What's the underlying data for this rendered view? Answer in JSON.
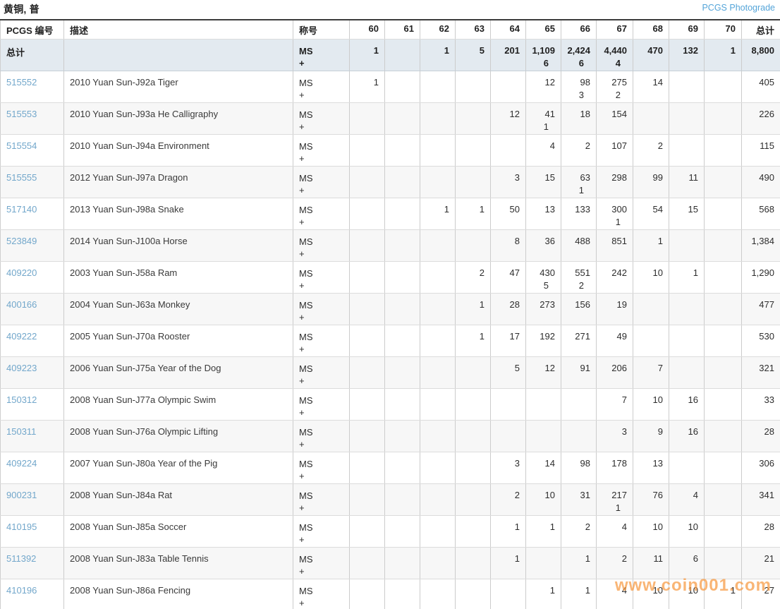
{
  "page": {
    "title": "黄铜, 普",
    "photograde_link": "PCGS Photograde"
  },
  "watermark": "www.coin001.com",
  "colors": {
    "link_blue": "#72a7cb",
    "photograde_blue": "#55a5d9",
    "totals_row_bg": "#e3eaf0",
    "watermark_orange": "#f79940"
  },
  "table": {
    "columns": [
      "PCGS 编号",
      "描述",
      "称号",
      "60",
      "61",
      "62",
      "63",
      "64",
      "65",
      "66",
      "67",
      "68",
      "69",
      "70",
      "总计"
    ],
    "grade_labels": [
      "60",
      "61",
      "62",
      "63",
      "64",
      "65",
      "66",
      "67",
      "68",
      "69",
      "70"
    ],
    "totals": {
      "label": "总计",
      "description": "",
      "designation": "MS +",
      "grades": [
        "1",
        "",
        "1",
        "5",
        "201",
        "1,109",
        "2,424",
        "4,440",
        "470",
        "132",
        "1"
      ],
      "plus": [
        "",
        "",
        "",
        "",
        "",
        "6",
        "6",
        "4",
        "",
        "",
        ""
      ],
      "total": "8,800"
    },
    "rows": [
      {
        "pcgs_no": "515552",
        "description": "2010 Yuan Sun-J92a Tiger",
        "designation": "MS +",
        "grades": [
          "1",
          "",
          "",
          "",
          "",
          "12",
          "98",
          "275",
          "14",
          "",
          ""
        ],
        "plus": [
          "",
          "",
          "",
          "",
          "",
          "",
          "3",
          "2",
          "",
          "",
          ""
        ],
        "total": "405"
      },
      {
        "pcgs_no": "515553",
        "description": "2010 Yuan Sun-J93a He Calligraphy",
        "designation": "MS +",
        "grades": [
          "",
          "",
          "",
          "",
          "12",
          "41",
          "18",
          "154",
          "",
          "",
          ""
        ],
        "plus": [
          "",
          "",
          "",
          "",
          "",
          "1",
          "",
          "",
          "",
          "",
          ""
        ],
        "total": "226"
      },
      {
        "pcgs_no": "515554",
        "description": "2010 Yuan Sun-J94a Environment",
        "designation": "MS +",
        "grades": [
          "",
          "",
          "",
          "",
          "",
          "4",
          "2",
          "107",
          "2",
          "",
          ""
        ],
        "plus": [
          "",
          "",
          "",
          "",
          "",
          "",
          "",
          "",
          "",
          "",
          ""
        ],
        "total": "115"
      },
      {
        "pcgs_no": "515555",
        "description": "2012 Yuan Sun-J97a Dragon",
        "designation": "MS +",
        "grades": [
          "",
          "",
          "",
          "",
          "3",
          "15",
          "63",
          "298",
          "99",
          "11",
          ""
        ],
        "plus": [
          "",
          "",
          "",
          "",
          "",
          "",
          "1",
          "",
          "",
          "",
          ""
        ],
        "total": "490"
      },
      {
        "pcgs_no": "517140",
        "description": "2013 Yuan Sun-J98a Snake",
        "designation": "MS +",
        "grades": [
          "",
          "",
          "1",
          "1",
          "50",
          "13",
          "133",
          "300",
          "54",
          "15",
          ""
        ],
        "plus": [
          "",
          "",
          "",
          "",
          "",
          "",
          "",
          "1",
          "",
          "",
          ""
        ],
        "total": "568"
      },
      {
        "pcgs_no": "523849",
        "description": "2014 Yuan Sun-J100a Horse",
        "designation": "MS +",
        "grades": [
          "",
          "",
          "",
          "",
          "8",
          "36",
          "488",
          "851",
          "1",
          "",
          ""
        ],
        "plus": [
          "",
          "",
          "",
          "",
          "",
          "",
          "",
          "",
          "",
          "",
          ""
        ],
        "total": "1,384"
      },
      {
        "pcgs_no": "409220",
        "description": "2003 Yuan Sun-J58a Ram",
        "designation": "MS +",
        "grades": [
          "",
          "",
          "",
          "2",
          "47",
          "430",
          "551",
          "242",
          "10",
          "1",
          ""
        ],
        "plus": [
          "",
          "",
          "",
          "",
          "",
          "5",
          "2",
          "",
          "",
          "",
          ""
        ],
        "total": "1,290"
      },
      {
        "pcgs_no": "400166",
        "description": "2004 Yuan Sun-J63a Monkey",
        "designation": "MS +",
        "grades": [
          "",
          "",
          "",
          "1",
          "28",
          "273",
          "156",
          "19",
          "",
          "",
          ""
        ],
        "plus": [
          "",
          "",
          "",
          "",
          "",
          "",
          "",
          "",
          "",
          "",
          ""
        ],
        "total": "477"
      },
      {
        "pcgs_no": "409222",
        "description": "2005 Yuan Sun-J70a Rooster",
        "designation": "MS +",
        "grades": [
          "",
          "",
          "",
          "1",
          "17",
          "192",
          "271",
          "49",
          "",
          "",
          ""
        ],
        "plus": [
          "",
          "",
          "",
          "",
          "",
          "",
          "",
          "",
          "",
          "",
          ""
        ],
        "total": "530"
      },
      {
        "pcgs_no": "409223",
        "description": "2006 Yuan Sun-J75a Year of the Dog",
        "designation": "MS +",
        "grades": [
          "",
          "",
          "",
          "",
          "5",
          "12",
          "91",
          "206",
          "7",
          "",
          ""
        ],
        "plus": [
          "",
          "",
          "",
          "",
          "",
          "",
          "",
          "",
          "",
          "",
          ""
        ],
        "total": "321"
      },
      {
        "pcgs_no": "150312",
        "description": "2008 Yuan Sun-J77a Olympic Swim",
        "designation": "MS +",
        "grades": [
          "",
          "",
          "",
          "",
          "",
          "",
          "",
          "7",
          "10",
          "16",
          ""
        ],
        "plus": [
          "",
          "",
          "",
          "",
          "",
          "",
          "",
          "",
          "",
          "",
          ""
        ],
        "total": "33"
      },
      {
        "pcgs_no": "150311",
        "description": "2008 Yuan Sun-J76a Olympic Lifting",
        "designation": "MS +",
        "grades": [
          "",
          "",
          "",
          "",
          "",
          "",
          "",
          "3",
          "9",
          "16",
          ""
        ],
        "plus": [
          "",
          "",
          "",
          "",
          "",
          "",
          "",
          "",
          "",
          "",
          ""
        ],
        "total": "28"
      },
      {
        "pcgs_no": "409224",
        "description": "2007 Yuan Sun-J80a Year of the Pig",
        "designation": "MS +",
        "grades": [
          "",
          "",
          "",
          "",
          "3",
          "14",
          "98",
          "178",
          "13",
          "",
          ""
        ],
        "plus": [
          "",
          "",
          "",
          "",
          "",
          "",
          "",
          "",
          "",
          "",
          ""
        ],
        "total": "306"
      },
      {
        "pcgs_no": "900231",
        "description": "2008 Yuan Sun-J84a Rat",
        "designation": "MS +",
        "grades": [
          "",
          "",
          "",
          "",
          "2",
          "10",
          "31",
          "217",
          "76",
          "4",
          ""
        ],
        "plus": [
          "",
          "",
          "",
          "",
          "",
          "",
          "",
          "1",
          "",
          "",
          ""
        ],
        "total": "341"
      },
      {
        "pcgs_no": "410195",
        "description": "2008 Yuan Sun-J85a Soccer",
        "designation": "MS +",
        "grades": [
          "",
          "",
          "",
          "",
          "1",
          "1",
          "2",
          "4",
          "10",
          "10",
          ""
        ],
        "plus": [
          "",
          "",
          "",
          "",
          "",
          "",
          "",
          "",
          "",
          "",
          ""
        ],
        "total": "28"
      },
      {
        "pcgs_no": "511392",
        "description": "2008 Yuan Sun-J83a Table Tennis",
        "designation": "MS +",
        "grades": [
          "",
          "",
          "",
          "",
          "1",
          "",
          "1",
          "2",
          "11",
          "6",
          ""
        ],
        "plus": [
          "",
          "",
          "",
          "",
          "",
          "",
          "",
          "",
          "",
          "",
          ""
        ],
        "total": "21"
      },
      {
        "pcgs_no": "410196",
        "description": "2008 Yuan Sun-J86a Fencing",
        "designation": "MS +",
        "grades": [
          "",
          "",
          "",
          "",
          "",
          "1",
          "1",
          "4",
          "10",
          "10",
          "1"
        ],
        "plus": [
          "",
          "",
          "",
          "",
          "",
          "",
          "",
          "",
          "",
          "",
          ""
        ],
        "total": "27"
      }
    ]
  }
}
